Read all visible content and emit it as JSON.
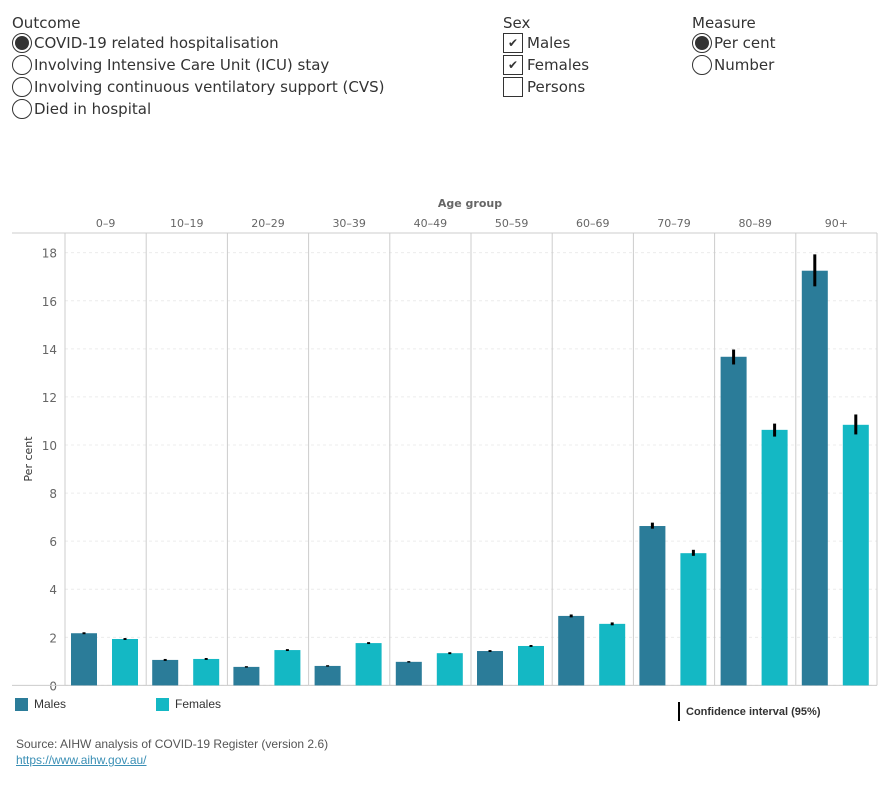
{
  "filters": {
    "outcome": {
      "title": "Outcome",
      "options": [
        "COVID-19 related hospitalisation",
        "Involving Intensive Care Unit (ICU) stay",
        "Involving continuous ventilatory support (CVS)",
        "Died in hospital"
      ],
      "selected": 0
    },
    "sex": {
      "title": "Sex",
      "options": [
        "Males",
        "Females",
        "Persons"
      ],
      "checked": [
        true,
        true,
        false
      ]
    },
    "measure": {
      "title": "Measure",
      "options": [
        "Per cent",
        "Number"
      ],
      "selected": 0
    }
  },
  "chart_data": {
    "type": "bar",
    "xlabel": "Age group",
    "ylabel": "Per cent",
    "ylim": [
      0,
      18.8
    ],
    "yticks": [
      0,
      2,
      4,
      6,
      8,
      10,
      12,
      14,
      16,
      18
    ],
    "grid": true,
    "categories": [
      "0–9",
      "10–19",
      "20–29",
      "30–39",
      "40–49",
      "50–59",
      "60–69",
      "70–79",
      "80–89",
      "90+"
    ],
    "series": [
      {
        "name": "Males",
        "color": "#2b7c99",
        "values": [
          2.17,
          1.06,
          0.77,
          0.81,
          0.98,
          1.43,
          2.89,
          6.63,
          13.67,
          17.25
        ],
        "ci_low": [
          2.13,
          1.02,
          0.74,
          0.78,
          0.95,
          1.39,
          2.83,
          6.52,
          13.35,
          16.6
        ],
        "ci_high": [
          2.21,
          1.1,
          0.8,
          0.84,
          1.01,
          1.47,
          2.95,
          6.77,
          13.97,
          17.93
        ]
      },
      {
        "name": "Females",
        "color": "#14b8c4",
        "values": [
          1.93,
          1.1,
          1.47,
          1.76,
          1.34,
          1.64,
          2.56,
          5.5,
          10.63,
          10.84
        ],
        "ci_low": [
          1.89,
          1.06,
          1.43,
          1.72,
          1.3,
          1.6,
          2.5,
          5.39,
          10.35,
          10.44
        ],
        "ci_high": [
          1.97,
          1.14,
          1.51,
          1.8,
          1.38,
          1.68,
          2.62,
          5.64,
          10.89,
          11.27
        ]
      }
    ],
    "legend_placement": "bottom",
    "ci_label": "Confidence interval (95%)"
  },
  "footer": {
    "source": "Source: AIHW analysis of COVID-19 Register (version 2.6)",
    "link": "https://www.aihw.gov.au/"
  }
}
